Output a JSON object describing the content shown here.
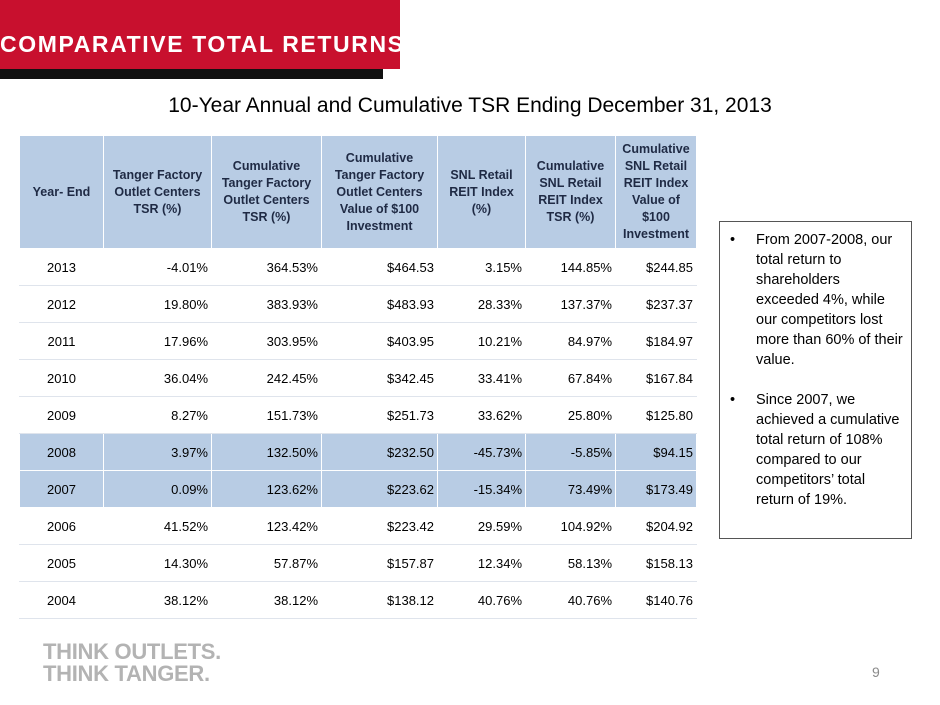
{
  "banner": {
    "title": "COMPARATIVE TOTAL RETURNS"
  },
  "subtitle": "10-Year Annual and Cumulative TSR Ending December 31, 2013",
  "table": {
    "headers": [
      "Year- End",
      "Tanger Factory Outlet Centers TSR   (%)",
      "Cumulative Tanger Factory Outlet Centers TSR  (%)",
      "Cumulative Tanger Factory Outlet Centers Value of $100 Investment",
      "SNL Retail REIT Index (%)",
      "Cumulative SNL Retail REIT Index TSR (%)",
      "Cumulative SNL Retail REIT Index Value of $100 Investment"
    ],
    "rows": [
      [
        "2013",
        "-4.01%",
        "364.53%",
        "$464.53",
        "3.15%",
        "144.85%",
        "$244.85"
      ],
      [
        "2012",
        "19.80%",
        "383.93%",
        "$483.93",
        "28.33%",
        "137.37%",
        "$237.37"
      ],
      [
        "2011",
        "17.96%",
        "303.95%",
        "$403.95",
        "10.21%",
        "84.97%",
        "$184.97"
      ],
      [
        "2010",
        "36.04%",
        "242.45%",
        "$342.45",
        "33.41%",
        "67.84%",
        "$167.84"
      ],
      [
        "2009",
        "8.27%",
        "151.73%",
        "$251.73",
        "33.62%",
        "25.80%",
        "$125.80"
      ],
      [
        "2008",
        "3.97%",
        "132.50%",
        "$232.50",
        "-45.73%",
        "-5.85%",
        "$94.15"
      ],
      [
        "2007",
        "0.09%",
        "123.62%",
        "$223.62",
        "-15.34%",
        "73.49%",
        "$173.49"
      ],
      [
        "2006",
        "41.52%",
        "123.42%",
        "$223.42",
        "29.59%",
        "104.92%",
        "$204.92"
      ],
      [
        "2005",
        "14.30%",
        "57.87%",
        "$157.87",
        "12.34%",
        "58.13%",
        "$158.13"
      ],
      [
        "2004",
        "38.12%",
        "38.12%",
        "$138.12",
        "40.76%",
        "40.76%",
        "$140.76"
      ]
    ]
  },
  "callout": {
    "bullet_char": "•",
    "bullets": [
      "From 2007-2008, our total return to shareholders exceeded 4%, while our competitors lost more than 60% of their value.",
      "Since 2007, we achieved a cumulative total return of 108% compared to our competitors’ total return of 19%."
    ]
  },
  "logo": {
    "line1": "THINK OUTLETS.",
    "line2": "THINK TANGER."
  },
  "page_number": "9",
  "colors": {
    "banner": "#c8102e",
    "header_fill": "#b8cce4",
    "row_light": "#e9edf4"
  }
}
